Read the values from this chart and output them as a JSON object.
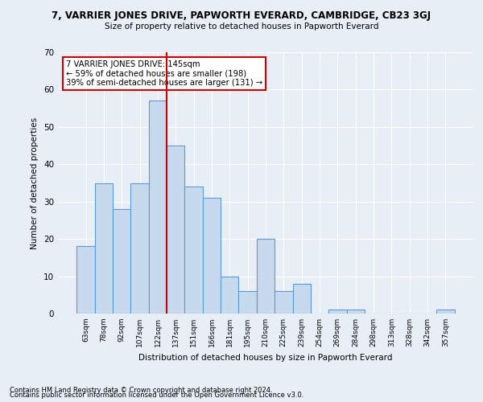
{
  "title": "7, VARRIER JONES DRIVE, PAPWORTH EVERARD, CAMBRIDGE, CB23 3GJ",
  "subtitle": "Size of property relative to detached houses in Papworth Everard",
  "xlabel": "Distribution of detached houses by size in Papworth Everard",
  "ylabel": "Number of detached properties",
  "categories": [
    "63sqm",
    "78sqm",
    "92sqm",
    "107sqm",
    "122sqm",
    "137sqm",
    "151sqm",
    "166sqm",
    "181sqm",
    "195sqm",
    "210sqm",
    "225sqm",
    "239sqm",
    "254sqm",
    "269sqm",
    "284sqm",
    "298sqm",
    "313sqm",
    "328sqm",
    "342sqm",
    "357sqm"
  ],
  "values": [
    18,
    35,
    28,
    35,
    57,
    45,
    34,
    31,
    10,
    6,
    20,
    6,
    8,
    0,
    1,
    1,
    0,
    0,
    0,
    0,
    1
  ],
  "bar_color": "#c7d9ed",
  "bar_edge_color": "#5b9bd5",
  "bg_color": "#e8eef5",
  "vline_x_index": 5,
  "vline_color": "#cc0000",
  "annotation_line1": "7 VARRIER JONES DRIVE: 145sqm",
  "annotation_line2": "← 59% of detached houses are smaller (198)",
  "annotation_line3": "39% of semi-detached houses are larger (131) →",
  "annotation_box_color": "#ffffff",
  "annotation_box_edge": "#cc0000",
  "ylim": [
    0,
    70
  ],
  "yticks": [
    0,
    10,
    20,
    30,
    40,
    50,
    60,
    70
  ],
  "footer1": "Contains HM Land Registry data © Crown copyright and database right 2024.",
  "footer2": "Contains public sector information licensed under the Open Government Licence v3.0."
}
